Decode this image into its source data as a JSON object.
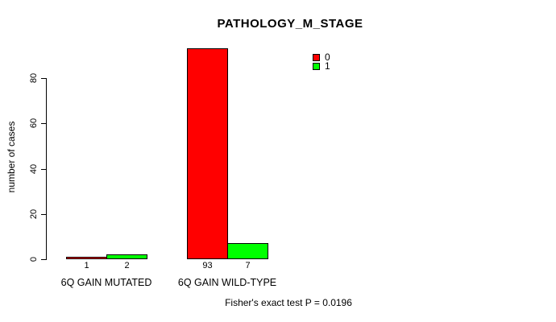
{
  "chart_data": {
    "type": "bar",
    "title": "PATHOLOGY_M_STAGE",
    "xlabel": "",
    "ylabel": "number of cases",
    "categories": [
      "6Q GAIN MUTATED",
      "6Q GAIN WILD-TYPE"
    ],
    "series": [
      {
        "name": "0",
        "color": "#ff0000",
        "values": [
          1,
          93
        ]
      },
      {
        "name": "1",
        "color": "#00ff00",
        "values": [
          2,
          7
        ]
      }
    ],
    "bar_value_labels": {
      "6Q GAIN MUTATED": [
        "1",
        "2"
      ],
      "6Q GAIN WILD-TYPE": [
        "93",
        "7"
      ]
    },
    "yticks": [
      "0",
      "20",
      "40",
      "60",
      "80"
    ],
    "ylim": [
      0,
      96
    ],
    "grid": false,
    "bar_border_color": "#000000",
    "legend": {
      "position": "inside-top-right",
      "entries": [
        {
          "label": "0",
          "color": "#ff0000"
        },
        {
          "label": "1",
          "color": "#00ff00"
        }
      ]
    },
    "annotation": "Fisher's exact test P = 0.0196"
  }
}
